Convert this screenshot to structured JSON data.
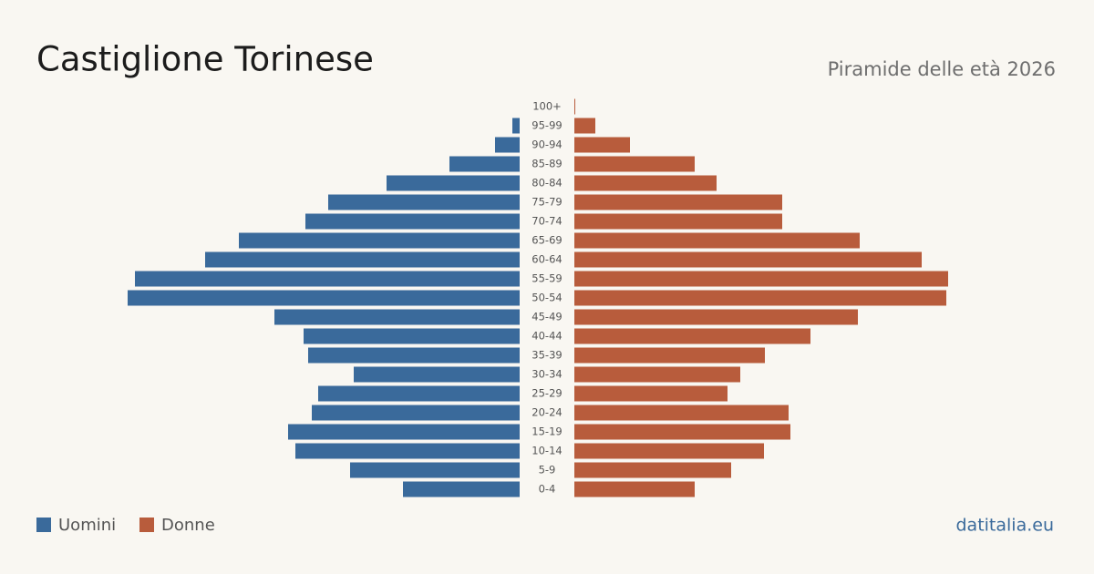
{
  "chart_data": {
    "type": "pyramid",
    "title": "Castiglione Torinese",
    "subtitle": "Piramide delle età 2026",
    "source": "datitalia.eu",
    "categories": [
      "100+",
      "95-99",
      "90-94",
      "85-89",
      "80-84",
      "75-79",
      "70-74",
      "65-69",
      "60-64",
      "55-59",
      "50-54",
      "45-49",
      "40-44",
      "35-39",
      "30-34",
      "25-29",
      "20-24",
      "15-19",
      "10-14",
      "5-9",
      "0-4"
    ],
    "series": [
      {
        "name": "Uomini",
        "color": "#3a6a9b",
        "values": [
          0,
          8,
          27,
          77,
          146,
          210,
          235,
          308,
          345,
          422,
          430,
          269,
          237,
          232,
          182,
          221,
          228,
          254,
          246,
          186,
          128
        ]
      },
      {
        "name": "Donne",
        "color": "#b85c3c",
        "values": [
          1,
          23,
          61,
          132,
          156,
          228,
          228,
          313,
          381,
          410,
          408,
          311,
          259,
          209,
          182,
          168,
          235,
          237,
          208,
          172,
          132
        ]
      }
    ]
  }
}
